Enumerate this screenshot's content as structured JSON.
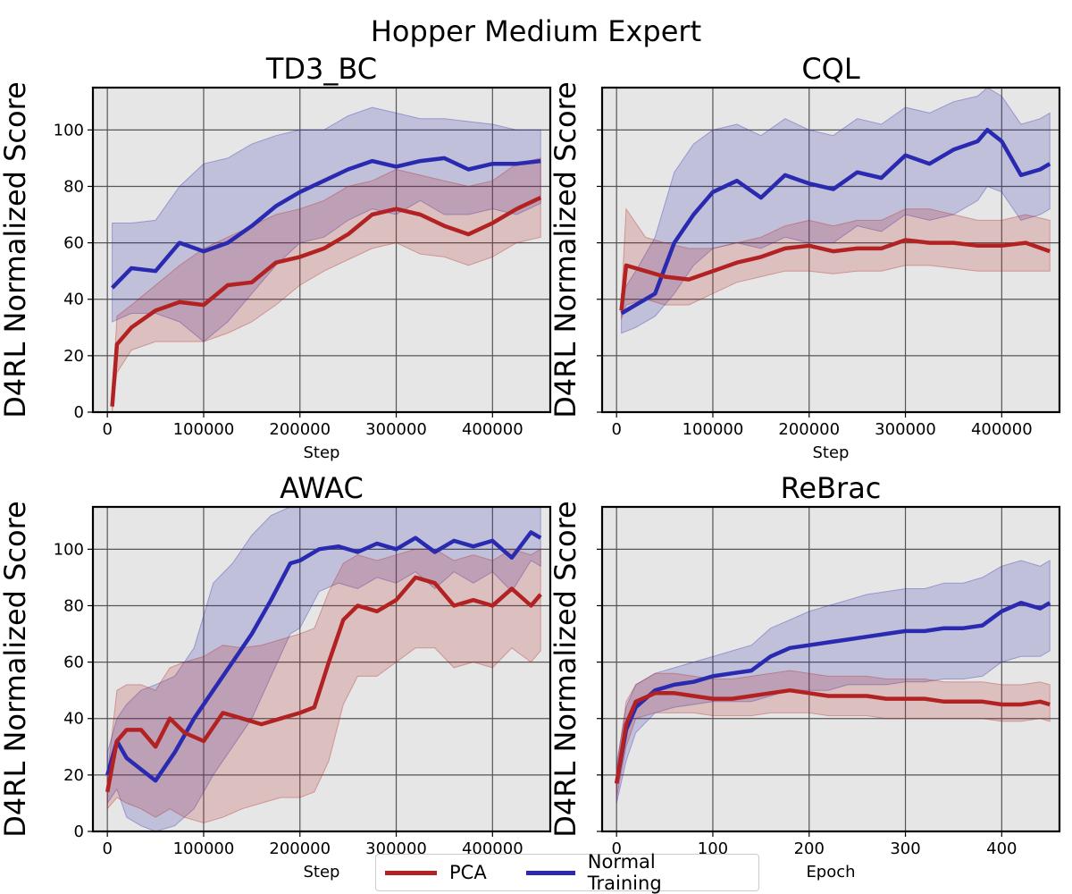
{
  "figure": {
    "suptitle": "Hopper Medium Expert"
  },
  "legend": [
    {
      "name": "PCA",
      "color": "#b22222"
    },
    {
      "name": "Normal Training",
      "color": "#2a2ab0"
    }
  ],
  "chart_data": [
    {
      "type": "line",
      "title": "TD3_BC",
      "xlabel": "Step",
      "ylabel": "D4RL Normalized Score",
      "xlim": [
        -15000,
        460000
      ],
      "ylim": [
        0,
        115
      ],
      "xticks": [
        0,
        100000,
        200000,
        300000,
        400000
      ],
      "yticks": [
        0,
        20,
        40,
        60,
        80,
        100
      ],
      "xtick_labels": [
        "0",
        "100000",
        "200000",
        "300000",
        "400000"
      ],
      "ytick_labels": [
        "0",
        "20",
        "40",
        "60",
        "80",
        "100"
      ],
      "grid": true,
      "series": [
        {
          "name": "Normal Training",
          "color": "#2a2ab0",
          "x": [
            5000,
            25000,
            50000,
            75000,
            100000,
            125000,
            150000,
            175000,
            200000,
            225000,
            250000,
            275000,
            300000,
            325000,
            350000,
            375000,
            400000,
            425000,
            450000
          ],
          "y": [
            44,
            51,
            50,
            60,
            57,
            60,
            66,
            73,
            78,
            82,
            86,
            89,
            87,
            89,
            90,
            86,
            88,
            88,
            89
          ],
          "lower": [
            32,
            35,
            35,
            32,
            25,
            32,
            42,
            52,
            60,
            62,
            68,
            72,
            70,
            75,
            70,
            70,
            72,
            70,
            74
          ],
          "upper": [
            67,
            67,
            68,
            80,
            88,
            90,
            95,
            98,
            100,
            100,
            105,
            108,
            106,
            104,
            104,
            103,
            102,
            100,
            100
          ]
        },
        {
          "name": "PCA",
          "color": "#b22222",
          "x": [
            5000,
            10000,
            25000,
            50000,
            75000,
            100000,
            125000,
            150000,
            175000,
            200000,
            225000,
            250000,
            275000,
            300000,
            325000,
            350000,
            375000,
            400000,
            425000,
            450000
          ],
          "y": [
            2,
            24,
            30,
            36,
            39,
            38,
            45,
            46,
            53,
            55,
            58,
            63,
            70,
            72,
            70,
            66,
            63,
            67,
            72,
            76
          ],
          "lower": [
            0,
            14,
            22,
            25,
            25,
            25,
            28,
            32,
            38,
            45,
            50,
            54,
            58,
            60,
            56,
            55,
            52,
            55,
            60,
            62
          ],
          "upper": [
            4,
            34,
            38,
            45,
            52,
            58,
            62,
            66,
            70,
            72,
            75,
            80,
            82,
            86,
            84,
            82,
            80,
            82,
            88,
            90
          ]
        }
      ]
    },
    {
      "type": "line",
      "title": "CQL",
      "xlabel": "Step",
      "ylabel": "D4RL Normalized Score",
      "xlim": [
        -15000,
        460000
      ],
      "ylim": [
        0,
        115
      ],
      "xticks": [
        0,
        100000,
        200000,
        300000,
        400000
      ],
      "yticks": [
        0,
        20,
        40,
        60,
        80,
        100
      ],
      "xtick_labels": [
        "0",
        "100000",
        "200000",
        "300000",
        "400000"
      ],
      "ytick_labels": [
        "",
        "",
        "",
        "",
        "",
        ""
      ],
      "grid": true,
      "series": [
        {
          "name": "Normal Training",
          "color": "#2a2ab0",
          "x": [
            5000,
            20000,
            40000,
            60000,
            80000,
            100000,
            125000,
            150000,
            175000,
            200000,
            225000,
            250000,
            275000,
            300000,
            325000,
            350000,
            375000,
            385000,
            400000,
            420000,
            440000,
            450000
          ],
          "y": [
            35,
            38,
            42,
            60,
            70,
            78,
            82,
            76,
            84,
            81,
            79,
            85,
            83,
            91,
            88,
            93,
            96,
            100,
            96,
            84,
            86,
            88
          ],
          "lower": [
            28,
            30,
            34,
            42,
            52,
            58,
            60,
            58,
            62,
            60,
            60,
            66,
            64,
            70,
            68,
            70,
            75,
            80,
            78,
            68,
            70,
            72
          ],
          "upper": [
            42,
            50,
            62,
            85,
            95,
            100,
            102,
            98,
            104,
            100,
            98,
            104,
            102,
            108,
            106,
            110,
            112,
            115,
            112,
            102,
            104,
            106
          ]
        },
        {
          "name": "PCA",
          "color": "#b22222",
          "x": [
            5000,
            10000,
            30000,
            50000,
            75000,
            100000,
            125000,
            150000,
            175000,
            200000,
            225000,
            250000,
            275000,
            300000,
            325000,
            350000,
            375000,
            400000,
            425000,
            450000
          ],
          "y": [
            36,
            52,
            50,
            48,
            47,
            50,
            53,
            55,
            58,
            59,
            57,
            58,
            58,
            61,
            60,
            60,
            59,
            59,
            60,
            57
          ],
          "lower": [
            33,
            38,
            40,
            38,
            38,
            42,
            46,
            48,
            50,
            50,
            49,
            50,
            50,
            52,
            52,
            51,
            50,
            50,
            50,
            50
          ],
          "upper": [
            40,
            72,
            62,
            60,
            58,
            58,
            60,
            62,
            66,
            68,
            66,
            68,
            68,
            72,
            72,
            70,
            68,
            68,
            70,
            68
          ]
        }
      ]
    },
    {
      "type": "line",
      "title": "AWAC",
      "xlabel": "Step",
      "ylabel": "D4RL Normalized Score",
      "xlim": [
        -15000,
        460000
      ],
      "ylim": [
        0,
        115
      ],
      "xticks": [
        0,
        100000,
        200000,
        300000,
        400000
      ],
      "yticks": [
        0,
        20,
        40,
        60,
        80,
        100
      ],
      "xtick_labels": [
        "0",
        "100000",
        "200000",
        "300000",
        "400000"
      ],
      "ytick_labels": [
        "0",
        "20",
        "40",
        "60",
        "80",
        "100"
      ],
      "grid": true,
      "series": [
        {
          "name": "Normal Training",
          "color": "#2a2ab0",
          "x": [
            0,
            10000,
            20000,
            35000,
            50000,
            70000,
            90000,
            110000,
            130000,
            150000,
            170000,
            190000,
            200000,
            220000,
            240000,
            260000,
            280000,
            300000,
            320000,
            340000,
            360000,
            380000,
            400000,
            420000,
            440000,
            450000
          ],
          "y": [
            20,
            32,
            26,
            22,
            18,
            28,
            40,
            50,
            60,
            70,
            82,
            95,
            96,
            100,
            101,
            99,
            102,
            100,
            104,
            99,
            103,
            101,
            103,
            97,
            106,
            104
          ],
          "lower": [
            10,
            15,
            5,
            2,
            0,
            2,
            8,
            20,
            30,
            40,
            55,
            70,
            72,
            85,
            88,
            86,
            90,
            88,
            92,
            86,
            92,
            88,
            92,
            85,
            96,
            94
          ],
          "upper": [
            28,
            40,
            45,
            50,
            52,
            55,
            65,
            88,
            95,
            105,
            112,
            115,
            115,
            115,
            115,
            115,
            115,
            115,
            115,
            115,
            115,
            115,
            115,
            115,
            115,
            115
          ]
        },
        {
          "name": "PCA",
          "color": "#b22222",
          "x": [
            0,
            10000,
            20000,
            35000,
            50000,
            65000,
            80000,
            100000,
            120000,
            140000,
            160000,
            180000,
            200000,
            215000,
            230000,
            245000,
            260000,
            280000,
            300000,
            320000,
            340000,
            360000,
            380000,
            400000,
            420000,
            440000,
            450000
          ],
          "y": [
            14,
            32,
            36,
            36,
            30,
            40,
            35,
            32,
            42,
            40,
            38,
            40,
            42,
            44,
            60,
            75,
            80,
            78,
            82,
            90,
            88,
            80,
            82,
            80,
            86,
            80,
            84
          ],
          "lower": [
            8,
            12,
            10,
            8,
            5,
            8,
            5,
            3,
            5,
            8,
            10,
            12,
            12,
            14,
            25,
            45,
            55,
            55,
            60,
            65,
            65,
            58,
            60,
            58,
            65,
            60,
            64
          ],
          "upper": [
            20,
            50,
            52,
            52,
            50,
            58,
            60,
            62,
            66,
            65,
            66,
            68,
            70,
            72,
            85,
            95,
            98,
            96,
            98,
            100,
            100,
            96,
            98,
            96,
            100,
            98,
            100
          ]
        }
      ]
    },
    {
      "type": "line",
      "title": "ReBrac",
      "xlabel": "Epoch",
      "ylabel": "D4RL Normalized Score",
      "xlim": [
        -15,
        460
      ],
      "ylim": [
        0,
        115
      ],
      "xticks": [
        0,
        100,
        200,
        300,
        400
      ],
      "yticks": [
        0,
        20,
        40,
        60,
        80,
        100
      ],
      "xtick_labels": [
        "0",
        "100",
        "200",
        "300",
        "400"
      ],
      "ytick_labels": [
        "",
        "",
        "",
        "",
        "",
        ""
      ],
      "grid": true,
      "series": [
        {
          "name": "Normal Training",
          "color": "#2a2ab0",
          "x": [
            0,
            10,
            20,
            40,
            60,
            80,
            100,
            120,
            140,
            160,
            180,
            200,
            220,
            240,
            260,
            280,
            300,
            320,
            340,
            360,
            380,
            400,
            420,
            440,
            450
          ],
          "y": [
            17,
            36,
            44,
            50,
            52,
            53,
            55,
            56,
            57,
            62,
            65,
            66,
            67,
            68,
            69,
            70,
            71,
            71,
            72,
            72,
            73,
            78,
            81,
            79,
            81
          ],
          "lower": [
            10,
            25,
            35,
            42,
            44,
            45,
            46,
            46,
            46,
            48,
            50,
            50,
            50,
            52,
            52,
            52,
            53,
            53,
            54,
            54,
            55,
            60,
            62,
            62,
            64
          ],
          "upper": [
            24,
            44,
            52,
            56,
            58,
            60,
            62,
            64,
            66,
            72,
            75,
            78,
            80,
            82,
            84,
            85,
            86,
            86,
            88,
            88,
            90,
            94,
            96,
            94,
            96
          ]
        },
        {
          "name": "PCA",
          "color": "#b22222",
          "x": [
            0,
            10,
            20,
            40,
            60,
            80,
            100,
            120,
            140,
            160,
            180,
            200,
            220,
            240,
            260,
            280,
            300,
            320,
            340,
            360,
            380,
            400,
            420,
            440,
            450
          ],
          "y": [
            17,
            38,
            46,
            49,
            49,
            48,
            47,
            47,
            48,
            49,
            50,
            49,
            48,
            48,
            48,
            47,
            47,
            47,
            46,
            46,
            46,
            45,
            45,
            46,
            45
          ],
          "lower": [
            12,
            30,
            40,
            42,
            42,
            42,
            41,
            41,
            41,
            42,
            42,
            42,
            41,
            41,
            41,
            40,
            40,
            40,
            40,
            40,
            40,
            39,
            39,
            40,
            39
          ],
          "upper": [
            22,
            46,
            52,
            56,
            56,
            55,
            54,
            54,
            55,
            56,
            57,
            56,
            55,
            55,
            55,
            54,
            54,
            54,
            53,
            53,
            53,
            52,
            52,
            53,
            52
          ]
        }
      ]
    }
  ]
}
